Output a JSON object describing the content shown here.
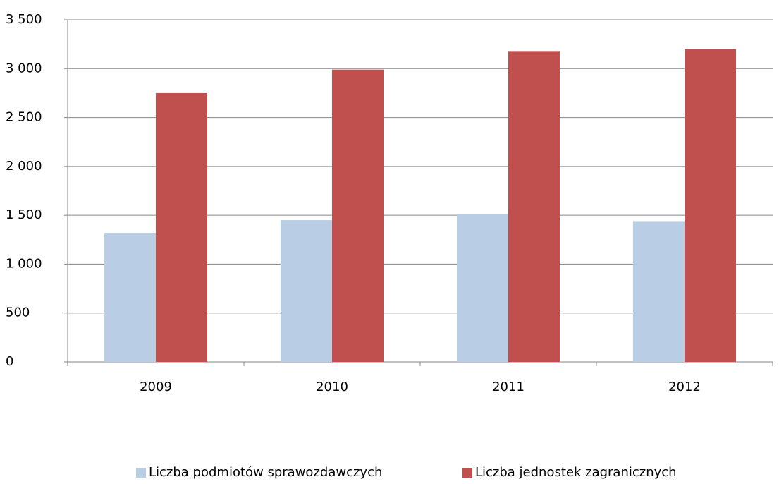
{
  "chart_data": {
    "type": "bar",
    "categories": [
      "2009",
      "2010",
      "2011",
      "2012"
    ],
    "series": [
      {
        "name": "Liczba podmiotów sprawozdawczych",
        "color": "#b9cde5",
        "values": [
          1320,
          1450,
          1510,
          1440
        ]
      },
      {
        "name": "Liczba jednostek zagranicznych",
        "color": "#c0504d",
        "values": [
          2750,
          2990,
          3180,
          3200
        ]
      }
    ],
    "ylim": [
      0,
      3500
    ],
    "yticks": [
      0,
      500,
      {
        "value": 1000,
        "label": "1 000"
      },
      {
        "value": 1500,
        "label": "1 500"
      },
      {
        "value": 2000,
        "label": "2 000"
      },
      {
        "value": 2500,
        "label": "2 500"
      },
      {
        "value": 3000,
        "label": "3 000"
      },
      {
        "value": 3500,
        "label": "3 500"
      }
    ],
    "grid": true,
    "legend": "bottom"
  }
}
